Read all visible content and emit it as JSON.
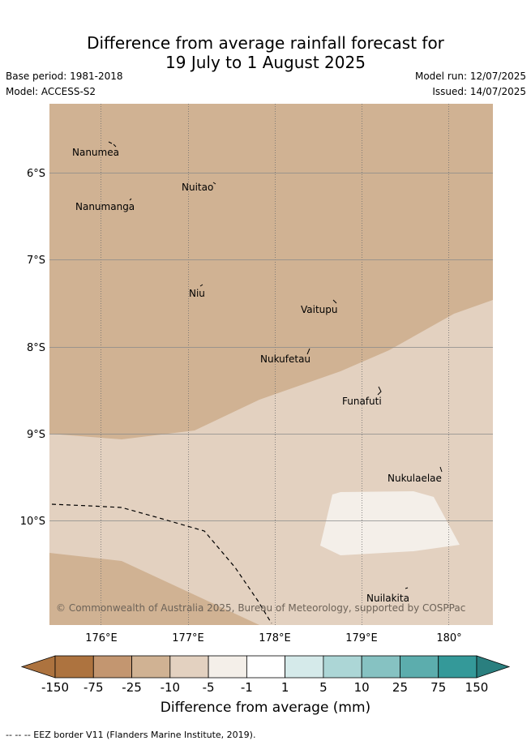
{
  "title": {
    "line1": "Difference from average rainfall forecast for",
    "line2": "19 July to 1 August 2025"
  },
  "meta": {
    "base_period": "Base period: 1981-2018",
    "model": "Model: ACCESS-S2",
    "model_run": "Model run: 12/07/2025",
    "issued": "Issued: 14/07/2025"
  },
  "map": {
    "x_ticks": [
      "176°E",
      "177°E",
      "178°E",
      "179°E",
      "180°"
    ],
    "y_ticks": [
      "6°S",
      "7°S",
      "8°S",
      "9°S",
      "10°S"
    ],
    "places": [
      "Nanumea",
      "Nuitao",
      "Nanumanga",
      "Niu",
      "Vaitupu",
      "Nukufetau",
      "Funafuti",
      "Nukulaelae",
      "Nuilakita"
    ],
    "copyright": "© Commonwealth of Australia 2025, Bureau of Meteorology, supported by COSPPac",
    "colors": {
      "dry_strong": "#d0b293",
      "dry_weak": "#e3d1c0",
      "near_normal": "#f4efe9"
    }
  },
  "colorbar": {
    "labels": [
      "-150",
      "-75",
      "-25",
      "-10",
      "-5",
      "-1",
      "1",
      "5",
      "10",
      "25",
      "75",
      "150"
    ],
    "colors": [
      "#ad733f",
      "#ad733f",
      "#c39670",
      "#d0b293",
      "#e3d1c0",
      "#f4efe9",
      "#ffffff",
      "#d5eaea",
      "#acd6d6",
      "#86c2c2",
      "#5cadad",
      "#349999",
      "#2a7f7f"
    ],
    "title": "Difference from average (mm)"
  },
  "footnote": "-- -- -- EEZ border V11 (Flanders Marine Institute, 2019)."
}
